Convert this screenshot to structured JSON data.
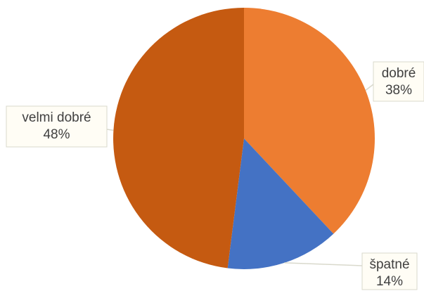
{
  "chart_data": {
    "type": "pie",
    "categories": [
      "dobré",
      "špatné",
      "velmi dobré"
    ],
    "values": [
      38,
      14,
      48
    ],
    "data_labels": [
      {
        "category": "dobré",
        "value": "38%"
      },
      {
        "category": "špatné",
        "value": "14%"
      },
      {
        "category": "velmi dobré",
        "value": "48%"
      }
    ],
    "colors": [
      "#ED7D31",
      "#4472C4",
      "#C55A11"
    ],
    "label_background": "#FFFDF5",
    "label_border": "#D9D9CC",
    "legend": "none",
    "start_angle": "12 o'clock",
    "direction": "clockwise"
  }
}
